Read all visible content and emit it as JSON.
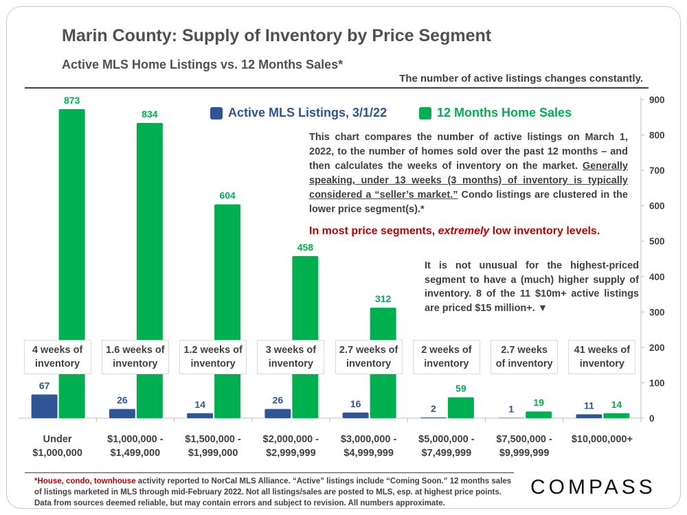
{
  "header": {
    "title": "Marin County: Supply of Inventory by Price Segment",
    "subtitle": "Active MLS Home Listings vs. 12 Months Sales*",
    "top_note": "The number of active listings changes constantly."
  },
  "annotations": {
    "description_a": "This chart compares the number of active listings on March 1, 2022, to the number of homes sold over the past 12 months – and then calculates the weeks of inventory on the market. ",
    "description_underlined": "Generally speaking, under 13 weeks (3 months) of inventory is typically considered a “seller’s market.”",
    "description_b": " Condo listings are clustered in the lower price segment(s).*",
    "red_a": "In most price segments, ",
    "red_italic": "extremely",
    "red_b": " low inventory levels.",
    "high_note": "It is not unusual for the highest-priced segment to have a (much) higher supply of inventory. 8 of the 11 $10m+ active listings are priced $15 million+. ▼"
  },
  "footer": {
    "asterisk": "*",
    "highlight": "House, condo, townhouse",
    "text": " activity reported to NorCal MLS Alliance. “Active” listings include “Coming Soon.” 12 months sales of listings marketed in MLS through mid-February 2022. Not all listings/sales are posted to MLS, esp. at highest price points. Data from sources deemed reliable, but may contain errors and subject to revision.  All numbers approximate."
  },
  "logo": "COMPASS",
  "colors": {
    "active": "#2f5597",
    "sales": "#00b050",
    "text": "#404040"
  },
  "chart_data": {
    "type": "bar",
    "title": "Marin County: Supply of Inventory by Price Segment",
    "categories": [
      [
        "Under",
        "$1,000,000"
      ],
      [
        "$1,000,000 -",
        "$1,499,000"
      ],
      [
        "$1,500,000 -",
        "$1,999,000"
      ],
      [
        "$2,000,000 -",
        "$2,999,999"
      ],
      [
        "$3,000,000 -",
        "$4,999,999"
      ],
      [
        "$5,000,000 -",
        "$7,499,999"
      ],
      [
        "$7,500,000 -",
        "$9,999,999"
      ],
      [
        "$10,000,000+"
      ]
    ],
    "series": [
      {
        "name": "Active MLS Listings, 3/1/22",
        "values": [
          67,
          26,
          14,
          26,
          16,
          2,
          1,
          11
        ]
      },
      {
        "name": "12 Months Home Sales",
        "values": [
          873,
          834,
          604,
          458,
          312,
          59,
          19,
          14
        ]
      }
    ],
    "weeks_of_inventory": [
      [
        "4 weeks of",
        "inventory"
      ],
      [
        "1.6 weeks of",
        "inventory"
      ],
      [
        "1.2 weeks of",
        "inventory"
      ],
      [
        "3 weeks of",
        "inventory"
      ],
      [
        "2.7 weeks of",
        "inventory"
      ],
      [
        "2 weeks of",
        "inventory"
      ],
      [
        "2.7 weeks",
        "of inventory"
      ],
      [
        "41 weeks of",
        "inventory"
      ]
    ],
    "y_ticks": [
      0,
      100,
      200,
      300,
      400,
      500,
      600,
      700,
      800,
      900
    ],
    "ylim": [
      0,
      900
    ],
    "y_axis_side": "right",
    "grid": false,
    "legend": "top"
  }
}
